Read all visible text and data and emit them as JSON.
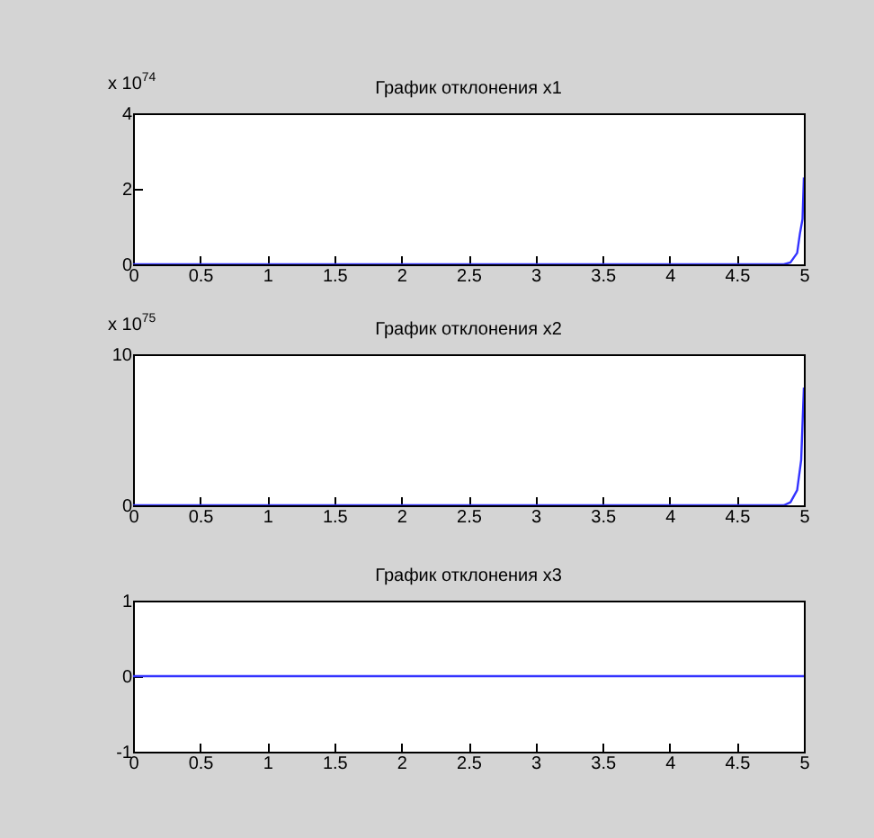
{
  "chart_data": [
    {
      "type": "line",
      "title": "График отклонения x1",
      "annotations": [
        "x 10$^{74}$"
      ],
      "xlim": [
        0,
        5
      ],
      "xticks": [
        0,
        0.5,
        1,
        1.5,
        2,
        2.5,
        3,
        3.5,
        4,
        4.5,
        5
      ],
      "ylim": [
        0,
        4
      ],
      "yticks": [
        0,
        2,
        4
      ],
      "grid": false,
      "series": [
        {
          "color": "#3333ff",
          "x": [
            0,
            1,
            2,
            3,
            4,
            4.85,
            4.9,
            4.95,
            4.97,
            4.99,
            5
          ],
          "values": [
            0,
            0,
            0,
            0,
            0,
            0,
            0.05,
            0.3,
            0.8,
            1.2,
            2.3
          ]
        }
      ]
    },
    {
      "type": "line",
      "title": "График отклонения x2",
      "annotations": [
        "x 10$^{75}$"
      ],
      "xlim": [
        0,
        5
      ],
      "xticks": [
        0,
        0.5,
        1,
        1.5,
        2,
        2.5,
        3,
        3.5,
        4,
        4.5,
        5
      ],
      "ylim": [
        0,
        10
      ],
      "yticks": [
        0,
        10
      ],
      "grid": false,
      "series": [
        {
          "color": "#3333ff",
          "x": [
            0,
            1,
            2,
            3,
            4,
            4.85,
            4.9,
            4.95,
            4.98,
            5
          ],
          "values": [
            0,
            0,
            0,
            0,
            0,
            0,
            0.2,
            1,
            3,
            7.8
          ]
        }
      ]
    },
    {
      "type": "line",
      "title": "График отклонения x3",
      "xlim": [
        0,
        5
      ],
      "xticks": [
        0,
        0.5,
        1,
        1.5,
        2,
        2.5,
        3,
        3.5,
        4,
        4.5,
        5
      ],
      "ylim": [
        -1,
        1
      ],
      "yticks": [
        -1,
        0,
        1
      ],
      "grid": false,
      "series": [
        {
          "color": "#3333ff",
          "x": [
            0,
            5
          ],
          "values": [
            0,
            0
          ]
        }
      ]
    }
  ]
}
